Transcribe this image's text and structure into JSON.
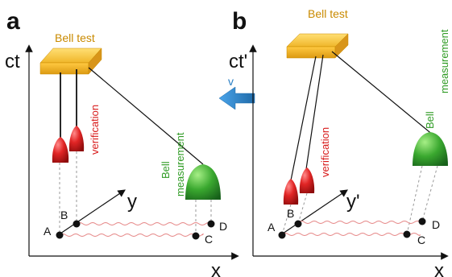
{
  "panel_a": {
    "panel_label": "a",
    "ct_label": "ct",
    "x_label": "x",
    "y_label": "y",
    "bell_test_label": "Bell test",
    "verification_label": "verification",
    "bell_measurement_label_1": "Bell",
    "bell_measurement_label_2": "measurement",
    "points": {
      "A": "A",
      "B": "B",
      "C": "C",
      "D": "D"
    }
  },
  "panel_b": {
    "panel_label": "b",
    "ct_label": "ct'",
    "x_label": "x",
    "y_label": "y'",
    "bell_test_label": "Bell test",
    "verification_label": "verification",
    "bell_measurement_label_1": "Bell",
    "bell_measurement_label_2": "measurement",
    "points": {
      "A": "A",
      "B": "B",
      "C": "C",
      "D": "D"
    }
  },
  "velocity": {
    "label": "v",
    "color": "#2a7fc4"
  },
  "colors": {
    "bell_bar": "#f0b62a",
    "red_detector": "#d81b1b",
    "green_detector": "#2f9b24",
    "wavy_line": "#e58585"
  }
}
